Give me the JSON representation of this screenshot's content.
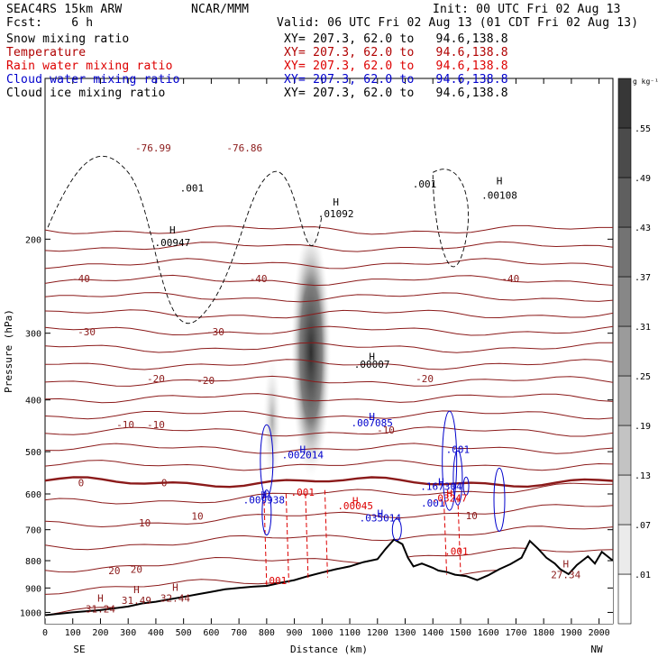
{
  "header": {
    "model": "SEAC4RS 15km ARW",
    "org": "NCAR/MMM",
    "init": "Init: 00 UTC Fri 02 Aug 13",
    "fcst": "Fcst:    6 h",
    "valid": "Valid: 06 UTC Fri 02 Aug 13 (01 CDT Fri 02 Aug 13)",
    "fields": [
      {
        "name": "Snow mixing ratio",
        "xy": "XY= 207.3, 62.0 to   94.6,138.8",
        "color": "#000000"
      },
      {
        "name": "Temperature",
        "xy": "XY= 207.3, 62.0 to   94.6,138.8",
        "color": "#b00000"
      },
      {
        "name": "Rain water mixing ratio",
        "xy": "XY= 207.3, 62.0 to   94.6,138.8",
        "color": "#dd0000"
      },
      {
        "name": "Cloud water mixing ratio",
        "xy": "XY= 207.3, 62.0 to   94.6,138.8",
        "color": "#0000cc"
      },
      {
        "name": "Cloud ice mixing ratio",
        "xy": "XY= 207.3, 62.0 to   94.6,138.8",
        "color": "#000000"
      }
    ]
  },
  "chart_data": {
    "type": "cross-section",
    "xlabel": "Distance (km)",
    "ylabel": "Pressure (hPa)",
    "x_ticks": [
      "0",
      "100",
      "200",
      "300",
      "400",
      "500",
      "600",
      "700",
      "800",
      "900",
      "1000",
      "1100",
      "1200",
      "1300",
      "1400",
      "1500",
      "1600",
      "1700",
      "1800",
      "1900",
      "2000"
    ],
    "y_ticks": [
      "200",
      "300",
      "400",
      "500",
      "600",
      "700",
      "800",
      "900",
      "1000"
    ],
    "xlim": [
      0,
      2050
    ],
    "ylim": [
      1050,
      100
    ],
    "y_scale": "log-pressure",
    "left_end_label": "SE",
    "right_end_label": "NW",
    "colorbar": {
      "unit": "g kg⁻¹",
      "labels": [
        ".01",
        ".07",
        ".13",
        ".19",
        ".25",
        ".31",
        ".37",
        ".43",
        ".49",
        ".55"
      ]
    },
    "temperature_contours": {
      "color": "#8b1a1a",
      "levels_C": [
        -75,
        -70,
        -65,
        -60,
        -55,
        -50,
        -45,
        -40,
        -35,
        -30,
        -25,
        -20,
        -15,
        -10,
        -5,
        0,
        5,
        10,
        15,
        20,
        25,
        30
      ],
      "zero_line_p_hPa": 570,
      "labels": [
        {
          "text": "-76.86",
          "x": 720,
          "p": 135
        },
        {
          "text": "-76.99",
          "x": 390,
          "p": 135
        },
        {
          "text": "-40",
          "x": 130,
          "p": 237
        },
        {
          "text": "-40",
          "x": 770,
          "p": 237
        },
        {
          "text": "-40",
          "x": 1680,
          "p": 237
        },
        {
          "text": "-30",
          "x": 150,
          "p": 298
        },
        {
          "text": "-30",
          "x": 615,
          "p": 298
        },
        {
          "text": "-20",
          "x": 400,
          "p": 365
        },
        {
          "text": "-20",
          "x": 580,
          "p": 368
        },
        {
          "text": "-20",
          "x": 1370,
          "p": 365
        },
        {
          "text": "-10",
          "x": 290,
          "p": 445
        },
        {
          "text": "-10",
          "x": 400,
          "p": 445
        },
        {
          "text": "-10",
          "x": 1230,
          "p": 455
        },
        {
          "text": "0",
          "x": 130,
          "p": 572
        },
        {
          "text": "0",
          "x": 430,
          "p": 572
        },
        {
          "text": "10",
          "x": 360,
          "p": 680
        },
        {
          "text": "10",
          "x": 550,
          "p": 660
        },
        {
          "text": "10",
          "x": 1540,
          "p": 658
        },
        {
          "text": "20",
          "x": 250,
          "p": 835
        },
        {
          "text": "20",
          "x": 330,
          "p": 830
        }
      ],
      "max_labels": [
        {
          "text": "31.24",
          "x": 200,
          "p": 985
        },
        {
          "text": "31.49",
          "x": 330,
          "p": 950
        },
        {
          "text": "32.44",
          "x": 470,
          "p": 940
        },
        {
          "text": "27.34",
          "x": 1880,
          "p": 850
        }
      ]
    },
    "snow_shading": [
      {
        "x": 960,
        "p_top": 190,
        "p_bottom": 560,
        "peak_g_kg": 0.55
      },
      {
        "x": 820,
        "p_top": 330,
        "p_bottom": 580,
        "peak_g_kg": 0.25
      }
    ],
    "terrain_profile": [
      [
        0,
        1012
      ],
      [
        100,
        1000
      ],
      [
        200,
        990
      ],
      [
        300,
        975
      ],
      [
        350,
        962
      ],
      [
        400,
        955
      ],
      [
        450,
        945
      ],
      [
        500,
        935
      ],
      [
        550,
        925
      ],
      [
        600,
        915
      ],
      [
        650,
        905
      ],
      [
        700,
        900
      ],
      [
        750,
        895
      ],
      [
        800,
        892
      ],
      [
        850,
        880
      ],
      [
        900,
        870
      ],
      [
        950,
        855
      ],
      [
        1000,
        842
      ],
      [
        1050,
        830
      ],
      [
        1100,
        820
      ],
      [
        1150,
        805
      ],
      [
        1200,
        795
      ],
      [
        1230,
        760
      ],
      [
        1260,
        730
      ],
      [
        1290,
        745
      ],
      [
        1310,
        790
      ],
      [
        1330,
        820
      ],
      [
        1360,
        810
      ],
      [
        1400,
        825
      ],
      [
        1420,
        835
      ],
      [
        1450,
        840
      ],
      [
        1480,
        850
      ],
      [
        1520,
        855
      ],
      [
        1560,
        870
      ],
      [
        1600,
        852
      ],
      [
        1640,
        830
      ],
      [
        1680,
        812
      ],
      [
        1720,
        790
      ],
      [
        1750,
        735
      ],
      [
        1780,
        760
      ],
      [
        1810,
        790
      ],
      [
        1840,
        810
      ],
      [
        1860,
        830
      ],
      [
        1890,
        848
      ],
      [
        1920,
        815
      ],
      [
        1940,
        800
      ],
      [
        1960,
        785
      ],
      [
        1985,
        810
      ],
      [
        2010,
        770
      ],
      [
        2050,
        800
      ]
    ],
    "annotations": [
      {
        "text": "H",
        "x": 1050,
        "p": 173,
        "color": "#000000"
      },
      {
        "text": ".01092",
        "x": 1050,
        "p": 182,
        "color": "#000000"
      },
      {
        "text": ".001",
        "x": 530,
        "p": 163,
        "color": "#000000"
      },
      {
        "text": "H",
        "x": 460,
        "p": 195,
        "color": "#000000"
      },
      {
        "text": ".00947",
        "x": 460,
        "p": 206,
        "color": "#000000"
      },
      {
        "text": "H",
        "x": 1640,
        "p": 158,
        "color": "#000000"
      },
      {
        "text": ".00108",
        "x": 1640,
        "p": 168,
        "color": "#000000"
      },
      {
        "text": ".001",
        "x": 1370,
        "p": 160,
        "color": "#000000"
      },
      {
        "text": "H",
        "x": 1180,
        "p": 337,
        "color": "#000000"
      },
      {
        "text": ".00007",
        "x": 1180,
        "p": 348,
        "color": "#000000"
      },
      {
        "text": "H",
        "x": 1180,
        "p": 436,
        "color": "#0000cc"
      },
      {
        "text": ".007085",
        "x": 1180,
        "p": 448,
        "color": "#0000cc"
      },
      {
        "text": "H",
        "x": 930,
        "p": 503,
        "color": "#0000cc"
      },
      {
        "text": ".002014",
        "x": 930,
        "p": 515,
        "color": "#0000cc"
      },
      {
        "text": ".001",
        "x": 1490,
        "p": 503,
        "color": "#0000cc"
      },
      {
        "text": "H",
        "x": 1430,
        "p": 578,
        "color": "#0000cc"
      },
      {
        "text": ".167304",
        "x": 1430,
        "p": 590,
        "color": "#0000cc"
      },
      {
        "text": ".001",
        "x": 1400,
        "p": 633,
        "color": "#0000cc"
      },
      {
        "text": "H",
        "x": 790,
        "p": 612,
        "color": "#0000cc"
      },
      {
        "text": ".009938",
        "x": 790,
        "p": 625,
        "color": "#0000cc"
      },
      {
        "text": "H",
        "x": 1210,
        "p": 662,
        "color": "#0000cc"
      },
      {
        "text": ".035014",
        "x": 1210,
        "p": 675,
        "color": "#0000cc"
      },
      {
        "text": "H",
        "x": 1120,
        "p": 628,
        "color": "#dd0000"
      },
      {
        "text": ".00045",
        "x": 1120,
        "p": 641,
        "color": "#dd0000"
      },
      {
        "text": ".001",
        "x": 930,
        "p": 605,
        "color": "#dd0000"
      },
      {
        "text": "H",
        "x": 1460,
        "p": 608,
        "color": "#dd0000"
      },
      {
        "text": ".03247",
        "x": 1460,
        "p": 620,
        "color": "#dd0000"
      },
      {
        "text": ".001",
        "x": 1485,
        "p": 780,
        "color": "#dd0000"
      },
      {
        "text": ".001",
        "x": 830,
        "p": 885,
        "color": "#dd0000"
      }
    ]
  }
}
